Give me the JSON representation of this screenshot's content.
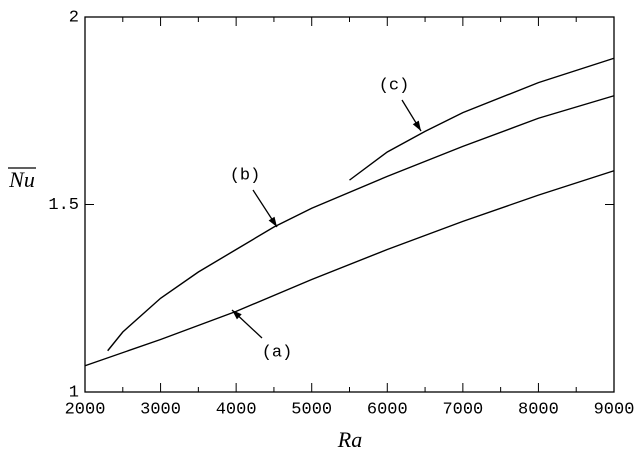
{
  "chart_data": {
    "type": "line",
    "xlabel": "Ra",
    "ylabel": "Nu",
    "ylabel_overline": true,
    "xlim": [
      2000,
      9000
    ],
    "ylim": [
      1,
      2
    ],
    "xticks": [
      2000,
      3000,
      4000,
      5000,
      6000,
      7000,
      8000,
      9000
    ],
    "xminorticks": [
      2500,
      3500,
      4500,
      5500,
      6500,
      7500,
      8500
    ],
    "yticks": [
      1,
      1.5,
      2
    ],
    "series": [
      {
        "name": "(a)",
        "color": "#000000",
        "x": [
          2000,
          3000,
          4000,
          5000,
          6000,
          7000,
          8000,
          9000
        ],
        "values": [
          1.07,
          1.14,
          1.215,
          1.3,
          1.38,
          1.455,
          1.525,
          1.59
        ]
      },
      {
        "name": "(b)",
        "color": "#000000",
        "x": [
          2300,
          2500,
          3000,
          3500,
          4000,
          4500,
          5000,
          6000,
          7000,
          8000,
          9000
        ],
        "values": [
          1.11,
          1.16,
          1.25,
          1.32,
          1.38,
          1.44,
          1.49,
          1.575,
          1.655,
          1.73,
          1.79
        ]
      },
      {
        "name": "(c)",
        "color": "#000000",
        "x": [
          5500,
          6000,
          6500,
          7000,
          8000,
          9000
        ],
        "values": [
          1.565,
          1.64,
          1.695,
          1.745,
          1.825,
          1.89
        ]
      }
    ]
  }
}
